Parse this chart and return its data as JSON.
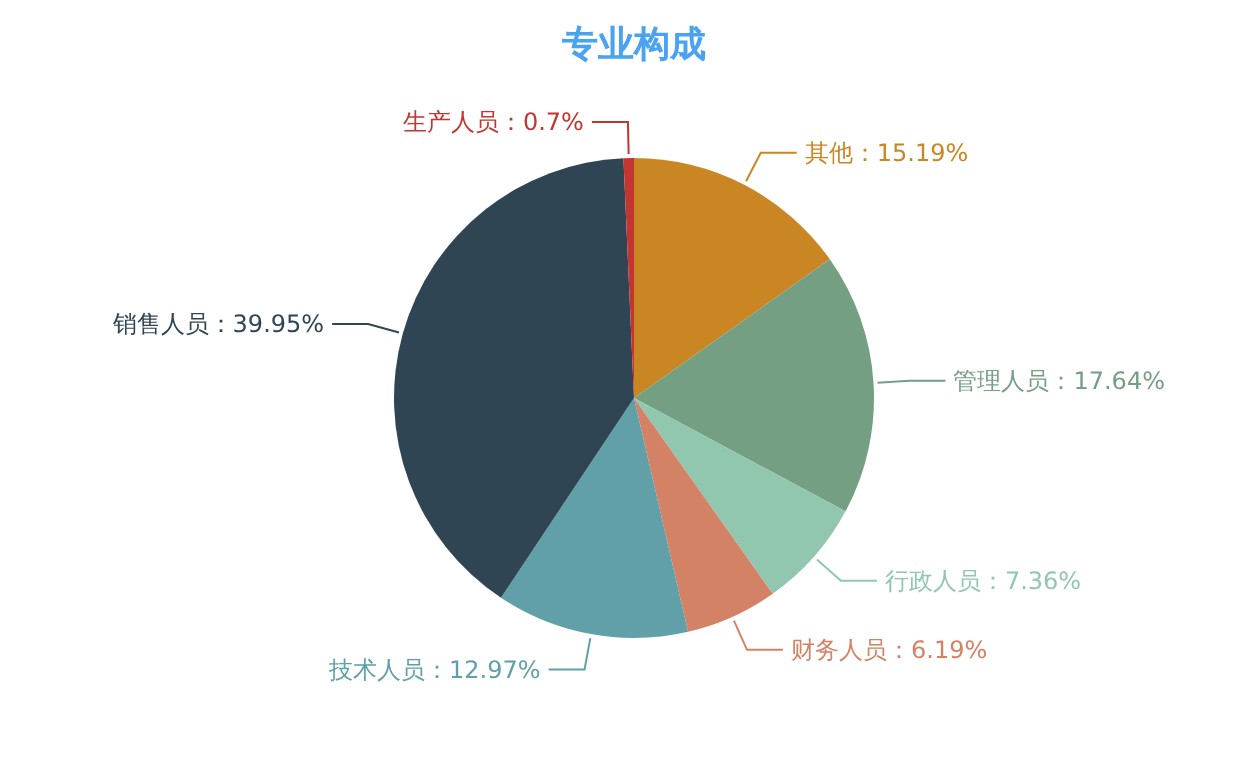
{
  "chart_data": {
    "type": "pie",
    "title": "专业构成",
    "categories": [
      "其他",
      "管理人员",
      "行政人员",
      "财务人员",
      "技术人员",
      "销售人员",
      "生产人员"
    ],
    "values": [
      15.19,
      17.64,
      7.36,
      6.19,
      12.97,
      39.95,
      0.7
    ],
    "value_labels": [
      "15.19%",
      "17.64%",
      "7.36%",
      "6.19%",
      "12.97%",
      "39.95%",
      "0.7%"
    ],
    "colors": [
      "#ca8622",
      "#749f83",
      "#91c7ae",
      "#d48265",
      "#61a0a8",
      "#2f4554",
      "#c23531"
    ]
  }
}
